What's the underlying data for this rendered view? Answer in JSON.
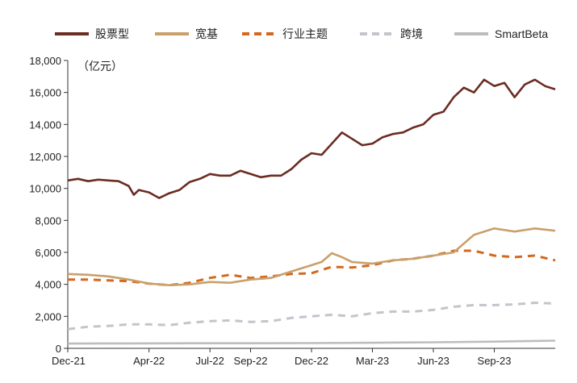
{
  "chart_data": {
    "type": "line",
    "unit_label": "（亿元）",
    "x_tick_labels": [
      "Dec-21",
      "Apr-22",
      "Jul-22",
      "Sep-22",
      "Dec-22",
      "Mar-23",
      "Jun-23",
      "Sep-23"
    ],
    "x_tick_months": [
      0,
      4,
      7,
      9,
      12,
      15,
      18,
      21
    ],
    "x_range_months": [
      0,
      24
    ],
    "ylim": [
      0,
      18000
    ],
    "y_ticks": [
      0,
      2000,
      4000,
      6000,
      8000,
      10000,
      12000,
      14000,
      16000,
      18000
    ],
    "y_tick_labels": [
      "0",
      "2,000",
      "4,000",
      "6,000",
      "8,000",
      "10,000",
      "12,000",
      "14,000",
      "16,000",
      "18,000"
    ],
    "legend_position": "top",
    "grid": false,
    "series": [
      {
        "name": "股票型",
        "color": "#6b2c22",
        "style": "solid",
        "points": [
          [
            0,
            10500
          ],
          [
            0.5,
            10600
          ],
          [
            1,
            10450
          ],
          [
            1.5,
            10550
          ],
          [
            2,
            10500
          ],
          [
            2.5,
            10450
          ],
          [
            3,
            10150
          ],
          [
            3.25,
            9600
          ],
          [
            3.5,
            9900
          ],
          [
            4,
            9750
          ],
          [
            4.5,
            9400
          ],
          [
            5,
            9700
          ],
          [
            5.5,
            9900
          ],
          [
            6,
            10400
          ],
          [
            6.5,
            10600
          ],
          [
            7,
            10900
          ],
          [
            7.5,
            10800
          ],
          [
            8,
            10800
          ],
          [
            8.5,
            11100
          ],
          [
            9,
            10900
          ],
          [
            9.5,
            10700
          ],
          [
            10,
            10800
          ],
          [
            10.5,
            10800
          ],
          [
            11,
            11200
          ],
          [
            11.5,
            11800
          ],
          [
            12,
            12200
          ],
          [
            12.5,
            12100
          ],
          [
            13,
            12800
          ],
          [
            13.5,
            13500
          ],
          [
            14,
            13100
          ],
          [
            14.5,
            12700
          ],
          [
            15,
            12800
          ],
          [
            15.5,
            13200
          ],
          [
            16,
            13400
          ],
          [
            16.5,
            13500
          ],
          [
            17,
            13800
          ],
          [
            17.5,
            14000
          ],
          [
            18,
            14600
          ],
          [
            18.5,
            14800
          ],
          [
            19,
            15700
          ],
          [
            19.5,
            16300
          ],
          [
            20,
            16000
          ],
          [
            20.5,
            16800
          ],
          [
            21,
            16400
          ],
          [
            21.5,
            16600
          ],
          [
            22,
            15700
          ],
          [
            22.5,
            16500
          ],
          [
            23,
            16800
          ],
          [
            23.5,
            16400
          ],
          [
            24,
            16200
          ]
        ]
      },
      {
        "name": "宽基",
        "color": "#c9a06b",
        "style": "solid",
        "points": [
          [
            0,
            4650
          ],
          [
            1,
            4600
          ],
          [
            2,
            4500
          ],
          [
            3,
            4300
          ],
          [
            4,
            4050
          ],
          [
            5,
            3950
          ],
          [
            6,
            4000
          ],
          [
            7,
            4150
          ],
          [
            8,
            4100
          ],
          [
            9,
            4300
          ],
          [
            10,
            4400
          ],
          [
            11,
            4800
          ],
          [
            12,
            5200
          ],
          [
            12.5,
            5400
          ],
          [
            13,
            5950
          ],
          [
            13.5,
            5700
          ],
          [
            14,
            5400
          ],
          [
            15,
            5300
          ],
          [
            16,
            5500
          ],
          [
            17,
            5600
          ],
          [
            18,
            5800
          ],
          [
            19,
            6000
          ],
          [
            20,
            7100
          ],
          [
            21,
            7500
          ],
          [
            22,
            7300
          ],
          [
            23,
            7500
          ],
          [
            24,
            7350
          ]
        ]
      },
      {
        "name": "行业主题",
        "color": "#d2691e",
        "style": "dashed",
        "points": [
          [
            0,
            4300
          ],
          [
            1,
            4300
          ],
          [
            2,
            4250
          ],
          [
            3,
            4200
          ],
          [
            4,
            4050
          ],
          [
            5,
            3950
          ],
          [
            6,
            4100
          ],
          [
            7,
            4400
          ],
          [
            8,
            4600
          ],
          [
            9,
            4400
          ],
          [
            10,
            4500
          ],
          [
            11,
            4650
          ],
          [
            12,
            4700
          ],
          [
            13,
            5100
          ],
          [
            14,
            5050
          ],
          [
            15,
            5200
          ],
          [
            16,
            5500
          ],
          [
            17,
            5600
          ],
          [
            18,
            5800
          ],
          [
            19,
            6100
          ],
          [
            20,
            6100
          ],
          [
            21,
            5800
          ],
          [
            22,
            5700
          ],
          [
            23,
            5800
          ],
          [
            24,
            5500
          ]
        ]
      },
      {
        "name": "跨境",
        "color": "#c4c4cc",
        "style": "dashed",
        "points": [
          [
            0,
            1200
          ],
          [
            1,
            1350
          ],
          [
            2,
            1400
          ],
          [
            3,
            1500
          ],
          [
            4,
            1500
          ],
          [
            5,
            1450
          ],
          [
            6,
            1600
          ],
          [
            7,
            1700
          ],
          [
            8,
            1750
          ],
          [
            9,
            1650
          ],
          [
            10,
            1700
          ],
          [
            11,
            1900
          ],
          [
            12,
            2000
          ],
          [
            13,
            2100
          ],
          [
            14,
            2000
          ],
          [
            15,
            2200
          ],
          [
            16,
            2300
          ],
          [
            17,
            2300
          ],
          [
            18,
            2400
          ],
          [
            19,
            2600
          ],
          [
            20,
            2700
          ],
          [
            21,
            2700
          ],
          [
            22,
            2750
          ],
          [
            23,
            2850
          ],
          [
            24,
            2800
          ]
        ]
      },
      {
        "name": "SmartBeta",
        "color": "#bdbdbd",
        "style": "solid",
        "points": [
          [
            0,
            300
          ],
          [
            3,
            310
          ],
          [
            6,
            320
          ],
          [
            9,
            320
          ],
          [
            12,
            330
          ],
          [
            15,
            350
          ],
          [
            18,
            380
          ],
          [
            21,
            420
          ],
          [
            24,
            480
          ]
        ]
      }
    ]
  }
}
